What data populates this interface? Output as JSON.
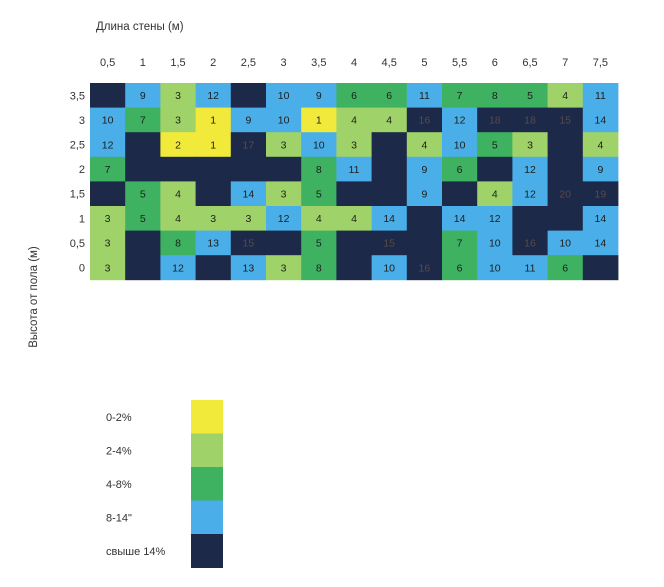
{
  "chart_data": {
    "type": "heatmap",
    "title": "",
    "xlabel": "Длина стены (м)",
    "ylabel": "Высота от пола (м)",
    "x_ticks": [
      "0,5",
      "1",
      "1,5",
      "2",
      "2,5",
      "3",
      "3,5",
      "4",
      "4,5",
      "5",
      "5,5",
      "6",
      "6,5",
      "7",
      "7,5"
    ],
    "y_ticks": [
      "3,5",
      "3",
      "2,5",
      "2",
      "1,5",
      "1",
      "0,5",
      "0"
    ],
    "legend": [
      {
        "label": "0-2%",
        "color": "#f2ea3a"
      },
      {
        "label": "2-4%",
        "color": "#9fd36a"
      },
      {
        "label": "4-8%",
        "color": "#3fb262"
      },
      {
        "label": "8-14\"",
        "color": "#4aaee8"
      },
      {
        "label": "свыше 14%",
        "color": "#1c2948"
      }
    ],
    "rows": [
      {
        "y": "3,5",
        "cells": [
          {
            "v": "",
            "c": 4
          },
          {
            "v": "9",
            "c": 3
          },
          {
            "v": "3",
            "c": 1
          },
          {
            "v": "12",
            "c": 3
          },
          {
            "v": "",
            "c": 4
          },
          {
            "v": "10",
            "c": 3
          },
          {
            "v": "9",
            "c": 3
          },
          {
            "v": "6",
            "c": 2
          },
          {
            "v": "6",
            "c": 2
          },
          {
            "v": "11",
            "c": 3
          },
          {
            "v": "7",
            "c": 2
          },
          {
            "v": "8",
            "c": 2
          },
          {
            "v": "5",
            "c": 2
          },
          {
            "v": "4",
            "c": 1
          },
          {
            "v": "11",
            "c": 3
          }
        ]
      },
      {
        "y": "3",
        "cells": [
          {
            "v": "10",
            "c": 3
          },
          {
            "v": "7",
            "c": 2
          },
          {
            "v": "3",
            "c": 1
          },
          {
            "v": "1",
            "c": 0
          },
          {
            "v": "9",
            "c": 3
          },
          {
            "v": "10",
            "c": 3
          },
          {
            "v": "1",
            "c": 0
          },
          {
            "v": "4",
            "c": 1
          },
          {
            "v": "4",
            "c": 1
          },
          {
            "v": "16",
            "c": 4
          },
          {
            "v": "12",
            "c": 3
          },
          {
            "v": "18",
            "c": 4
          },
          {
            "v": "18",
            "c": 4
          },
          {
            "v": "15",
            "c": 4
          },
          {
            "v": "14",
            "c": 3
          }
        ]
      },
      {
        "y": "2,5",
        "cells": [
          {
            "v": "12",
            "c": 3
          },
          {
            "v": "",
            "c": 4
          },
          {
            "v": "2",
            "c": 0
          },
          {
            "v": "1",
            "c": 0
          },
          {
            "v": "17",
            "c": 4
          },
          {
            "v": "3",
            "c": 1
          },
          {
            "v": "10",
            "c": 3
          },
          {
            "v": "3",
            "c": 1
          },
          {
            "v": "",
            "c": 4
          },
          {
            "v": "4",
            "c": 1
          },
          {
            "v": "10",
            "c": 3
          },
          {
            "v": "5",
            "c": 2
          },
          {
            "v": "3",
            "c": 1
          },
          {
            "v": "",
            "c": 4
          },
          {
            "v": "4",
            "c": 1
          }
        ]
      },
      {
        "y": "2",
        "cells": [
          {
            "v": "7",
            "c": 2
          },
          {
            "v": "",
            "c": 4
          },
          {
            "v": "",
            "c": 4
          },
          {
            "v": "",
            "c": 4
          },
          {
            "v": "",
            "c": 4
          },
          {
            "v": "",
            "c": 4
          },
          {
            "v": "8",
            "c": 2
          },
          {
            "v": "11",
            "c": 3
          },
          {
            "v": "",
            "c": 4
          },
          {
            "v": "9",
            "c": 3
          },
          {
            "v": "6",
            "c": 2
          },
          {
            "v": "",
            "c": 4
          },
          {
            "v": "12",
            "c": 3
          },
          {
            "v": "",
            "c": 4
          },
          {
            "v": "9",
            "c": 3
          }
        ]
      },
      {
        "y": "1,5",
        "cells": [
          {
            "v": "",
            "c": 4
          },
          {
            "v": "5",
            "c": 2
          },
          {
            "v": "4",
            "c": 1
          },
          {
            "v": "",
            "c": 4
          },
          {
            "v": "14",
            "c": 3
          },
          {
            "v": "3",
            "c": 1
          },
          {
            "v": "5",
            "c": 2
          },
          {
            "v": "",
            "c": 4
          },
          {
            "v": "",
            "c": 4
          },
          {
            "v": "9",
            "c": 3
          },
          {
            "v": "",
            "c": 4
          },
          {
            "v": "4",
            "c": 1
          },
          {
            "v": "12",
            "c": 3
          },
          {
            "v": "20",
            "c": 4
          },
          {
            "v": "19",
            "c": 4
          }
        ]
      },
      {
        "y": "1",
        "cells": [
          {
            "v": "3",
            "c": 1
          },
          {
            "v": "5",
            "c": 2
          },
          {
            "v": "4",
            "c": 1
          },
          {
            "v": "3",
            "c": 1
          },
          {
            "v": "3",
            "c": 1
          },
          {
            "v": "12",
            "c": 3
          },
          {
            "v": "4",
            "c": 1
          },
          {
            "v": "4",
            "c": 1
          },
          {
            "v": "14",
            "c": 3
          },
          {
            "v": "",
            "c": 4
          },
          {
            "v": "14",
            "c": 3
          },
          {
            "v": "12",
            "c": 3
          },
          {
            "v": "",
            "c": 4
          },
          {
            "v": "",
            "c": 4
          },
          {
            "v": "14",
            "c": 3
          }
        ]
      },
      {
        "y": "0,5",
        "cells": [
          {
            "v": "3",
            "c": 1
          },
          {
            "v": "",
            "c": 4
          },
          {
            "v": "8",
            "c": 2
          },
          {
            "v": "13",
            "c": 3
          },
          {
            "v": "15",
            "c": 4
          },
          {
            "v": "",
            "c": 4
          },
          {
            "v": "5",
            "c": 2
          },
          {
            "v": "",
            "c": 4
          },
          {
            "v": "15",
            "c": 4
          },
          {
            "v": "",
            "c": 4
          },
          {
            "v": "7",
            "c": 2
          },
          {
            "v": "10",
            "c": 3
          },
          {
            "v": "16",
            "c": 4
          },
          {
            "v": "10",
            "c": 3
          },
          {
            "v": "14",
            "c": 3
          }
        ]
      },
      {
        "y": "0",
        "cells": [
          {
            "v": "3",
            "c": 1
          },
          {
            "v": "",
            "c": 4
          },
          {
            "v": "12",
            "c": 3
          },
          {
            "v": "",
            "c": 4
          },
          {
            "v": "13",
            "c": 3
          },
          {
            "v": "3",
            "c": 1
          },
          {
            "v": "8",
            "c": 2
          },
          {
            "v": "",
            "c": 4
          },
          {
            "v": "10",
            "c": 3
          },
          {
            "v": "16",
            "c": 4
          },
          {
            "v": "6",
            "c": 2
          },
          {
            "v": "10",
            "c": 3
          },
          {
            "v": "11",
            "c": 3
          },
          {
            "v": "6",
            "c": 2
          },
          {
            "v": "",
            "c": 4
          }
        ]
      }
    ],
    "grid": false,
    "legend_position": "bottom-left"
  }
}
